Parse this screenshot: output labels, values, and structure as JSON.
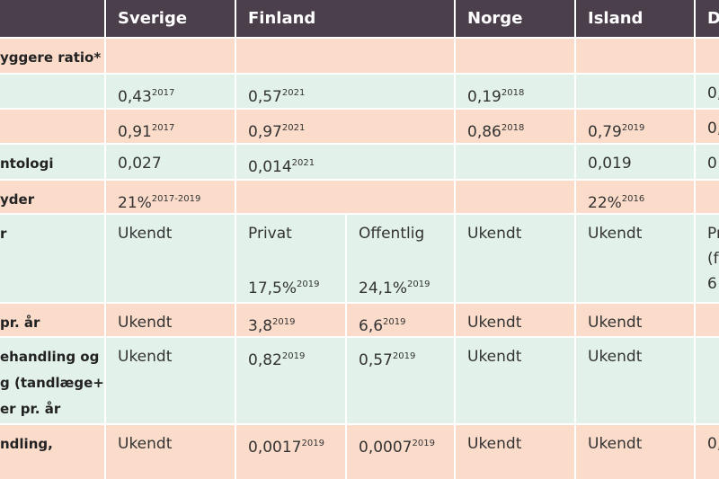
{
  "table": {
    "header": [
      "Sverige",
      "Finland",
      "Norge",
      "Island",
      "D"
    ],
    "rows": [
      {
        "label": [
          "yggere ratio*"
        ],
        "cells": [
          null,
          null,
          null,
          null,
          null,
          null
        ]
      },
      {
        "cells": [
          {
            "text": "0,43",
            "sup": "2017"
          },
          {
            "text": "0,57",
            "sup": "2021"
          },
          null,
          {
            "text": "0,19",
            "sup": "2018"
          },
          null,
          {
            "text": "0,"
          }
        ]
      },
      {
        "cells": [
          {
            "text": "0,91",
            "sup": "2017"
          },
          {
            "text": "0,97",
            "sup": "2021"
          },
          null,
          {
            "text": "0,86",
            "sup": "2018"
          },
          {
            "text": "0,79",
            "sup": "2019"
          },
          {
            "text": "0,"
          }
        ]
      },
      {
        "label": [
          "ntologi"
        ],
        "cells": [
          {
            "text": "0,027"
          },
          {
            "text": "0,014",
            "sup": "2021"
          },
          null,
          null,
          {
            "text": "0,019"
          },
          {
            "text": "0"
          }
        ]
      },
      {
        "label": [
          "yder"
        ],
        "cells": [
          {
            "text": "21%",
            "sup": "2017-2019"
          },
          null,
          null,
          null,
          {
            "text": "22%",
            "sup": "2016"
          },
          null
        ]
      },
      {
        "label": [
          "r"
        ],
        "cells": [
          {
            "text": "Ukendt"
          },
          {
            "head": "Privat",
            "text": "17,5%",
            "sup": "2019"
          },
          {
            "head": "Offentlig",
            "text": "24,1%",
            "sup": "2019"
          },
          {
            "text": "Ukendt"
          },
          {
            "text": "Ukendt"
          },
          {
            "lines": [
              "Pr",
              "(f",
              "6"
            ]
          }
        ]
      },
      {
        "label": [
          "pr. år"
        ],
        "cells": [
          {
            "text": "Ukendt"
          },
          {
            "text": "3,8",
            "sup": "2019"
          },
          {
            "text": "6,6",
            "sup": "2019"
          },
          {
            "text": "Ukendt"
          },
          {
            "text": "Ukendt"
          },
          null
        ]
      },
      {
        "label": [
          "ehandling og",
          "g (tandlæge+",
          "er pr. år"
        ],
        "cells": [
          {
            "text": "Ukendt"
          },
          {
            "text": "0,82",
            "sup": "2019"
          },
          {
            "text": "0,57",
            "sup": "2019"
          },
          {
            "text": "Ukendt"
          },
          {
            "text": "Ukendt"
          },
          null
        ]
      },
      {
        "label": [
          "ndling,"
        ],
        "cells": [
          {
            "text": "Ukendt"
          },
          {
            "text": "0,0017",
            "sup": "2019"
          },
          {
            "text": "0,0007",
            "sup": "2019"
          },
          {
            "text": "Ukendt"
          },
          {
            "text": "Ukendt"
          },
          {
            "text": "0,"
          }
        ]
      }
    ]
  }
}
